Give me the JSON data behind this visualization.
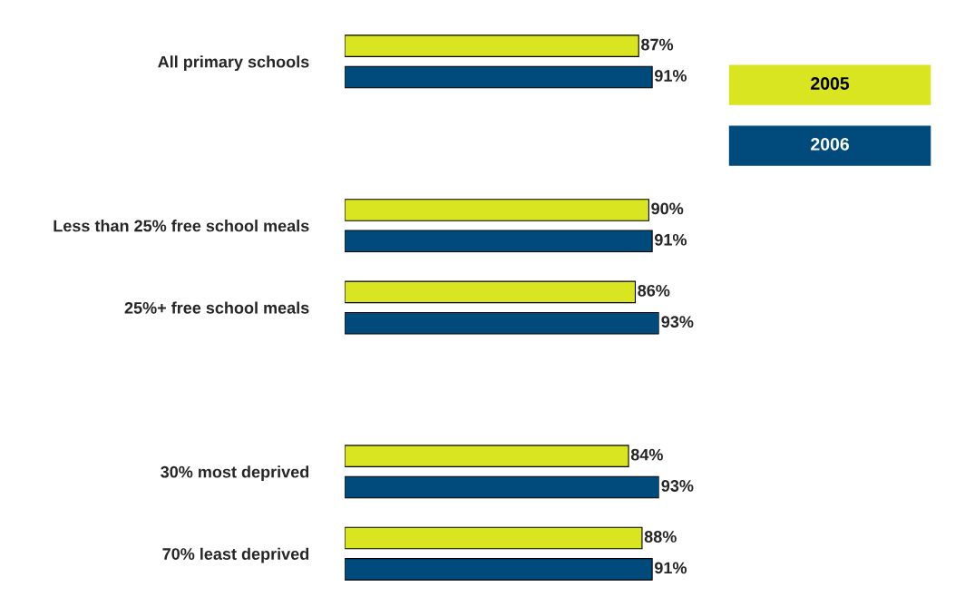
{
  "chart_data": {
    "type": "bar",
    "orientation": "horizontal",
    "categories": [
      "All primary schools",
      null,
      "Less than 25% free school meals",
      "25%+ free school meals",
      null,
      "30% most deprived",
      "70% least deprived"
    ],
    "series": [
      {
        "name": "2005",
        "color": "#d9e521",
        "values": [
          87,
          null,
          90,
          86,
          null,
          84,
          88
        ],
        "value_labels": [
          "87%",
          null,
          "90%",
          "86%",
          null,
          "84%",
          "88%"
        ]
      },
      {
        "name": "2006",
        "color": "#004a7c",
        "values": [
          91,
          null,
          91,
          93,
          null,
          93,
          91
        ],
        "value_labels": [
          "91%",
          null,
          "91%",
          "93%",
          null,
          "93%",
          "91%"
        ]
      }
    ],
    "tick_labels": "y",
    "legend": "top right",
    "grid": false
  }
}
